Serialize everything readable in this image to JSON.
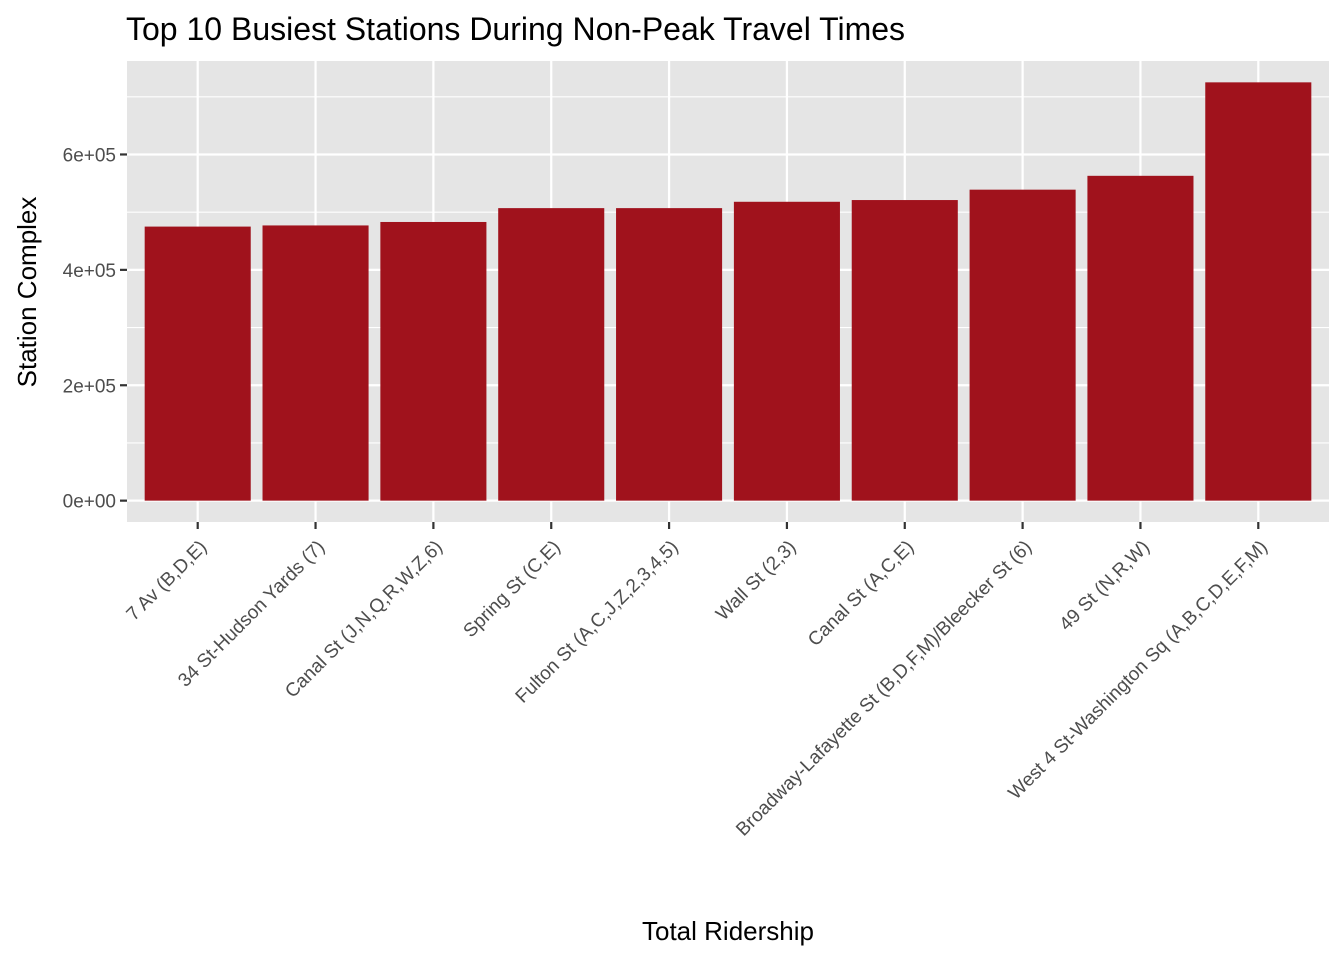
{
  "chart_data": {
    "type": "bar",
    "title": "Top 10 Busiest Stations During Non-Peak Travel Times",
    "xlabel": "Total Ridership",
    "ylabel": "Station Complex",
    "categories": [
      "7 Av (B,D,E)",
      "34 St-Hudson Yards (7)",
      "Canal St (J,N,Q,R,W,Z,6)",
      "Spring St (C,E)",
      "Fulton St (A,C,J,Z,2,3,4,5)",
      "Wall St (2,3)",
      "Canal St (A,C,E)",
      "Broadway-Lafayette St (B,D,F,M)/Bleecker St (6)",
      "49 St (N,R,W)",
      "West 4 St-Washington Sq (A,B,C,D,E,F,M)"
    ],
    "values": [
      475000,
      477000,
      483000,
      507000,
      507000,
      518000,
      521000,
      539000,
      563000,
      725000
    ],
    "ylim": [
      -37000,
      762000
    ],
    "y_ticks": [
      0,
      200000,
      400000,
      600000
    ],
    "y_tick_labels": [
      "0e+00",
      "2e+05",
      "4e+05",
      "6e+05"
    ],
    "bar_color": "#a0121c",
    "panel_background": "#e5e5e5",
    "grid_color": "#ffffff",
    "grid": true,
    "legend": "none"
  }
}
